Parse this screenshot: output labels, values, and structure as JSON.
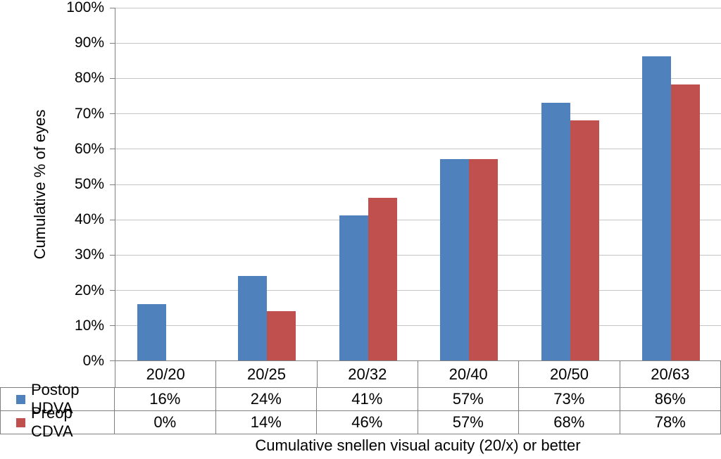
{
  "chart_data": {
    "type": "bar",
    "title": "",
    "xlabel": "Cumulative snellen visual acuity (20/x) or better",
    "ylabel": "Cumulative % of eyes",
    "categories": [
      "20/20",
      "20/25",
      "20/32",
      "20/40",
      "20/50",
      "20/63"
    ],
    "series": [
      {
        "name": "Postop UDVA",
        "color": "#4f81bd",
        "values": [
          16,
          24,
          41,
          57,
          73,
          86
        ],
        "labels": [
          "16%",
          "24%",
          "41%",
          "57%",
          "73%",
          "86%"
        ]
      },
      {
        "name": "Preop CDVA",
        "color": "#c0504d",
        "values": [
          0,
          14,
          46,
          57,
          68,
          78
        ],
        "labels": [
          "0%",
          "14%",
          "46%",
          "57%",
          "68%",
          "78%"
        ]
      }
    ],
    "ylim": [
      0,
      100
    ],
    "ytick_step": 10,
    "ytick_labels": [
      "0%",
      "10%",
      "20%",
      "30%",
      "40%",
      "50%",
      "60%",
      "70%",
      "80%",
      "90%",
      "100%"
    ],
    "grid": true,
    "gridline_color": "#c6c6c6",
    "axis_color": "#7f7f7f",
    "legend_position": "table-left"
  }
}
